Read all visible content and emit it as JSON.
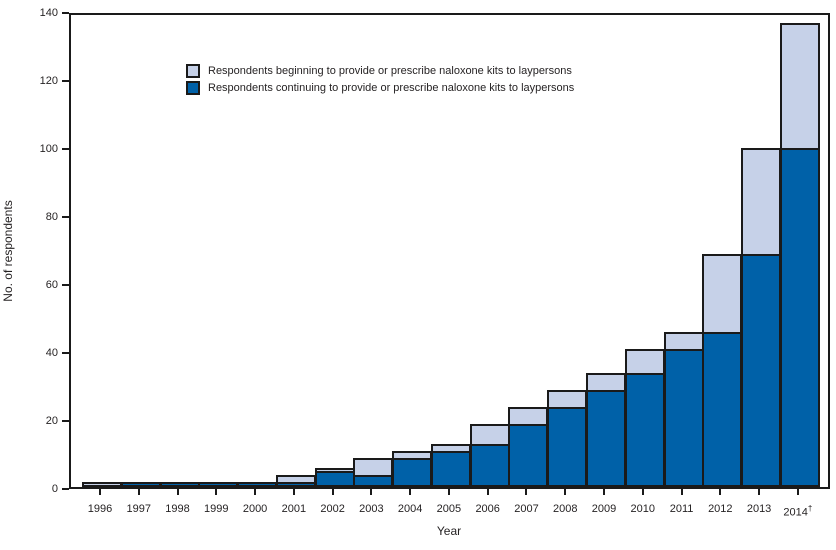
{
  "figure": {
    "y_axis_title": "No. of respondents",
    "x_axis_title": "Year",
    "colors": {
      "beginning": "#c6d1e8",
      "continuing": "#0061a8",
      "frame": "#1a1a1a",
      "background": "#ffffff"
    },
    "legend": {
      "items": [
        {
          "key": "beginning",
          "label": "Respondents beginning to provide or prescribe naloxone kits to laypersons",
          "color": "#c6d1e8"
        },
        {
          "key": "continuing",
          "label": "Respondents continuing to provide or prescribe naloxone kits to laypersons",
          "color": "#0061a8"
        }
      ]
    }
  },
  "chart_data": {
    "type": "bar",
    "stacked": true,
    "title": "",
    "xlabel": "Year",
    "ylabel": "No. of respondents",
    "ylim": [
      0,
      140
    ],
    "yticks": [
      0,
      20,
      40,
      60,
      80,
      100,
      120,
      140
    ],
    "grid": false,
    "legend_position": "upper-left-inside",
    "categories": [
      "1996",
      "1997",
      "1998",
      "1999",
      "2000",
      "2001",
      "2002",
      "2003",
      "2004",
      "2005",
      "2006",
      "2007",
      "2008",
      "2009",
      "2010",
      "2011",
      "2012",
      "2013",
      "2014†"
    ],
    "series": [
      {
        "name": "Respondents continuing to provide or prescribe naloxone kits to laypersons",
        "color": "#0061a8",
        "values": [
          0,
          1,
          1,
          1,
          1,
          1,
          4,
          3,
          8,
          10,
          12,
          18,
          23,
          28,
          33,
          40,
          45,
          68,
          99
        ]
      },
      {
        "name": "Respondents beginning to provide or prescribe naloxone kits to laypersons",
        "color": "#c6d1e8",
        "values": [
          1,
          0,
          0,
          0,
          0,
          2,
          1,
          5,
          2,
          2,
          6,
          5,
          5,
          5,
          7,
          5,
          23,
          31,
          37
        ]
      }
    ],
    "totals": [
      1,
      1,
      1,
      1,
      1,
      3,
      5,
      8,
      10,
      12,
      18,
      23,
      28,
      33,
      40,
      45,
      68,
      99,
      136
    ]
  }
}
